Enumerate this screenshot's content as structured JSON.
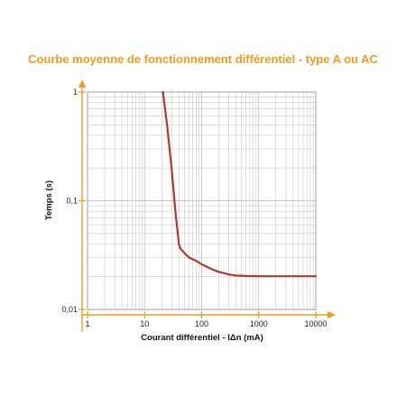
{
  "chart_data": {
    "type": "line",
    "title": "Courbe moyenne de fonctionnement différentiel - type A ou AC",
    "xlabel": "Courant différentiel - IΔn (mA)",
    "ylabel": "Temps (s)",
    "x_scale": "log",
    "y_scale": "log",
    "xlim": [
      1,
      10000
    ],
    "ylim": [
      0.01,
      1
    ],
    "x_ticks": [
      1,
      10,
      100,
      1000,
      10000
    ],
    "x_tick_labels": [
      "1",
      "10",
      "100",
      "1000",
      "10000"
    ],
    "y_ticks": [
      0.01,
      0.1,
      1
    ],
    "y_tick_labels": [
      "0,01",
      "0,1",
      "1"
    ],
    "grid": true,
    "series": [
      {
        "x": [
          21,
          25,
          30,
          35,
          40,
          43,
          50,
          60,
          80,
          100,
          150,
          200,
          300,
          400,
          600,
          1000,
          2000,
          5000,
          10000
        ],
        "y": [
          1.0,
          0.48,
          0.19,
          0.075,
          0.04,
          0.036,
          0.033,
          0.03,
          0.028,
          0.026,
          0.0235,
          0.0222,
          0.021,
          0.0205,
          0.0203,
          0.0202,
          0.0202,
          0.0202,
          0.0202
        ]
      }
    ],
    "colors": {
      "curve": "#b03a30",
      "axis": "#f39a1e",
      "title": "#f39a1e",
      "grid": "#c8c8c8",
      "border": "#9a9a9a"
    }
  }
}
